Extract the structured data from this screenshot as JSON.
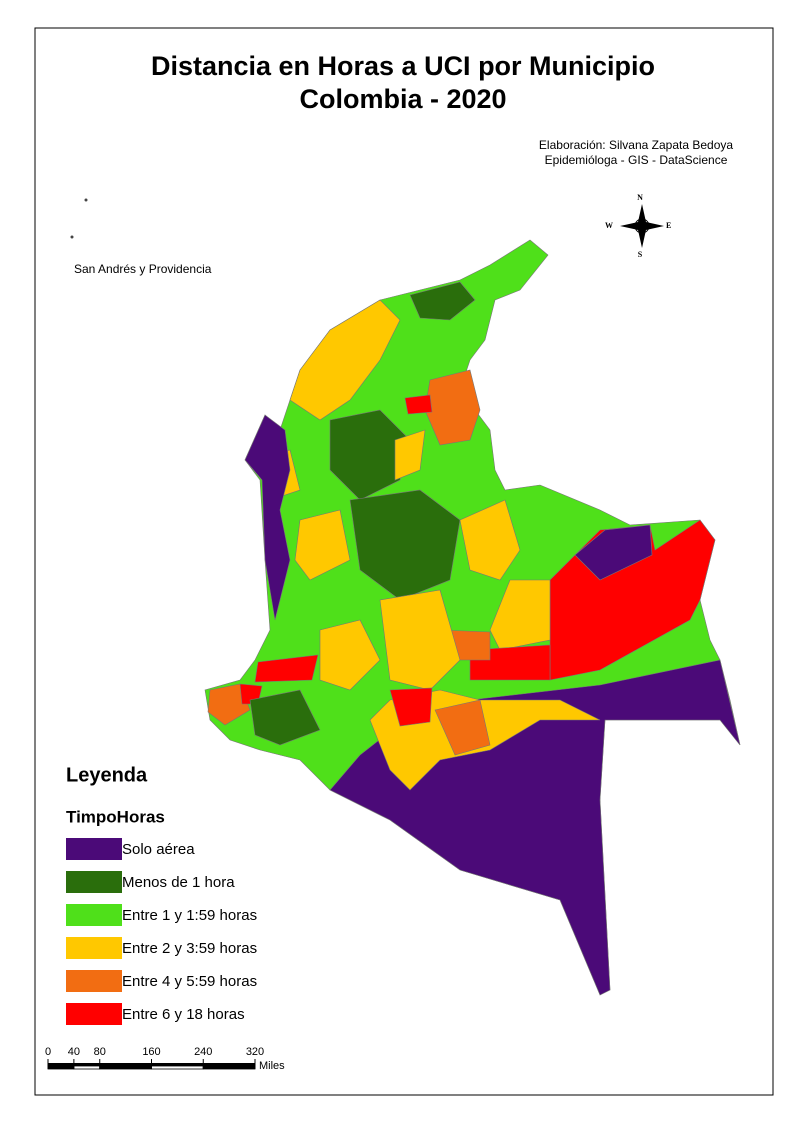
{
  "title": {
    "line1": "Distancia en Horas a UCI por Municipio",
    "line2": "Colombia - 2020"
  },
  "credits": [
    "Elaboración: Silvana Zapata Bedoya",
    "Epidemióloga - GIS - DataScience"
  ],
  "north_arrow": {
    "n": "N",
    "s": "S",
    "e": "E",
    "w": "W"
  },
  "inset_label": "San Andrés y Providencia",
  "legend": {
    "title": "Leyenda",
    "field": "TimpoHoras",
    "items": [
      {
        "label": "Solo aérea",
        "color": "#4b0a78"
      },
      {
        "label": "Menos de 1 hora",
        "color": "#2a6e0c"
      },
      {
        "label": "Entre 1 y 1:59 horas",
        "color": "#4fe01a"
      },
      {
        "label": "Entre 2 y 3:59 horas",
        "color": "#ffc800"
      },
      {
        "label": "Entre 4 y 5:59 horas",
        "color": "#f26d12"
      },
      {
        "label": "Entre 6 y 18 horas",
        "color": "#ff0000"
      }
    ]
  },
  "scale_bar": {
    "ticks": [
      0,
      40,
      80,
      160,
      240,
      320
    ],
    "unit": "Miles"
  }
}
